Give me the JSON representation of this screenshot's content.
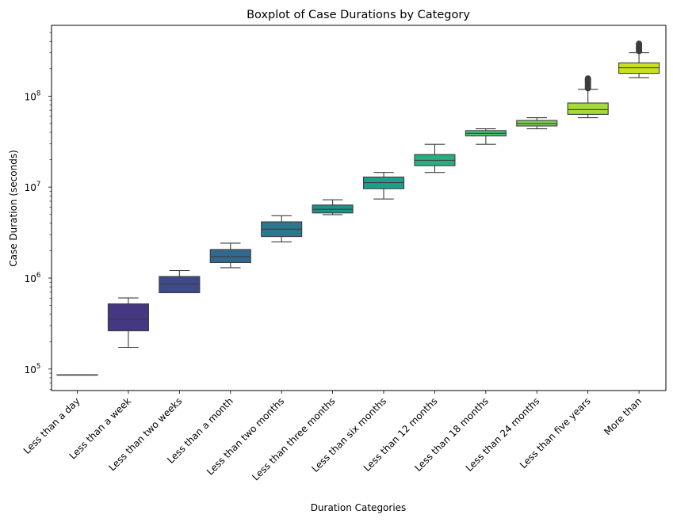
{
  "chart_data": {
    "type": "box",
    "title": "Boxplot of Case Durations by Category",
    "xlabel": "Duration Categories",
    "ylabel": "Case Duration (seconds)",
    "yscale": "log",
    "ylim": [
      58000,
      600000000
    ],
    "yticks": [
      {
        "value": 100000,
        "base": "10",
        "exp": "5"
      },
      {
        "value": 1000000,
        "base": "10",
        "exp": "6"
      },
      {
        "value": 10000000,
        "base": "10",
        "exp": "7"
      },
      {
        "value": 100000000,
        "base": "10",
        "exp": "8"
      }
    ],
    "grid": false,
    "palette": "viridis",
    "categories": [
      {
        "label": "Less than a day",
        "whislo": 86400,
        "q1": 86400,
        "median": 86400,
        "q3": 86400,
        "whishi": 86400,
        "outliers": [],
        "color": "#440154"
      },
      {
        "label": "Less than a week",
        "whislo": 173000,
        "q1": 263000,
        "median": 352000,
        "q3": 520000,
        "whishi": 604800,
        "outliers": [],
        "color": "#453781"
      },
      {
        "label": "Less than two weeks",
        "whislo": 690000,
        "q1": 690000,
        "median": 860000,
        "q3": 1040000,
        "whishi": 1210000,
        "outliers": [],
        "color": "#3e4a89"
      },
      {
        "label": "Less than a month",
        "whislo": 1300000,
        "q1": 1480000,
        "median": 1720000,
        "q3": 2060000,
        "whishi": 2420000,
        "outliers": [],
        "color": "#31688e"
      },
      {
        "label": "Less than two months",
        "whislo": 2500000,
        "q1": 2860000,
        "median": 3450000,
        "q3": 4150000,
        "whishi": 4850000,
        "outliers": [],
        "color": "#2a788e"
      },
      {
        "label": "Less than three months",
        "whislo": 4980000,
        "q1": 5200000,
        "median": 5700000,
        "q3": 6350000,
        "whishi": 7250000,
        "outliers": [],
        "color": "#21908d"
      },
      {
        "label": "Less than six months",
        "whislo": 7400000,
        "q1": 9600000,
        "median": 11200000,
        "q3": 12900000,
        "whishi": 14500000,
        "outliers": [],
        "color": "#1f9e89"
      },
      {
        "label": "Less than 12 months",
        "whislo": 14500000,
        "q1": 17200000,
        "median": 19700000,
        "q3": 22800000,
        "whishi": 29500000,
        "outliers": [],
        "color": "#29af7f"
      },
      {
        "label": "Less than 18 months",
        "whislo": 29500000,
        "q1": 36500000,
        "median": 39000000,
        "q3": 41800000,
        "whishi": 43800000,
        "outliers": [],
        "color": "#4ac16d"
      },
      {
        "label": "Less than 24 months",
        "whislo": 43800000,
        "q1": 47000000,
        "median": 50000000,
        "q3": 54000000,
        "whishi": 58000000,
        "outliers": [],
        "color": "#7ad151"
      },
      {
        "label": "Less than five years",
        "whislo": 58000000,
        "q1": 63000000,
        "median": 71000000,
        "q3": 84000000,
        "whishi": 119000000,
        "outliers": [
          122000000,
          127000000,
          133000000,
          139000000,
          145000000,
          151000000,
          156000000
        ],
        "color": "#a5db36"
      },
      {
        "label": "More than",
        "whislo": 160000000,
        "q1": 178000000,
        "median": 205000000,
        "q3": 232000000,
        "whishi": 300000000,
        "outliers": [
          313000000,
          330000000,
          346000000,
          362000000,
          376000000
        ],
        "color": "#c9e020"
      }
    ]
  }
}
